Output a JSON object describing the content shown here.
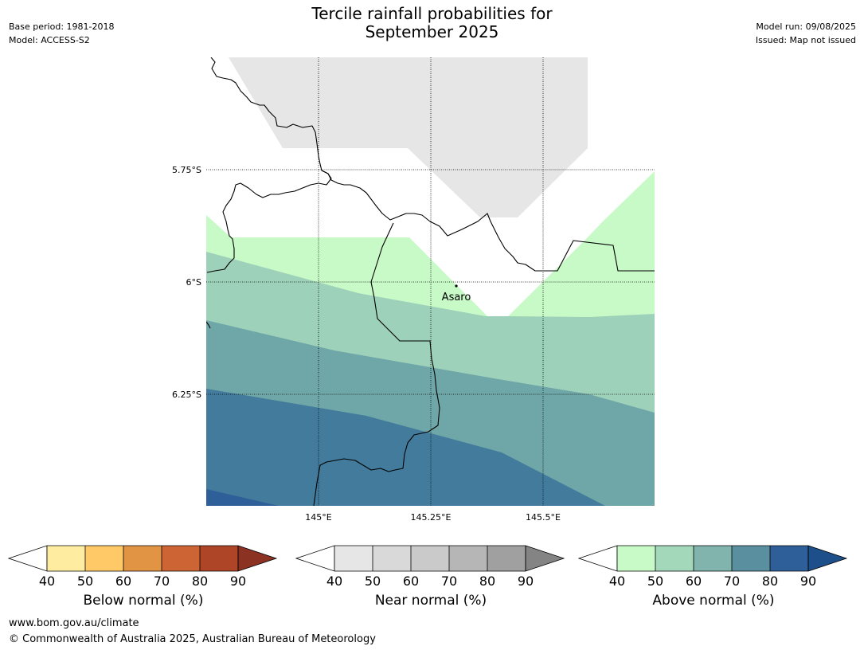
{
  "header": {
    "title_line1": "Tercile rainfall probabilities for",
    "title_line2": "September 2025",
    "base_period": "Base period: 1981-2018",
    "model": "Model: ACCESS-S2",
    "model_run": "Model run: 09/08/2025",
    "issued": "Issued: Map not issued"
  },
  "map": {
    "lat_labels": [
      "5.75°S",
      "6°S",
      "6.25°S"
    ],
    "lon_labels": [
      "145°E",
      "145.25°E",
      "145.5°E"
    ],
    "place": "Asaro",
    "colors": {
      "near_normal_40_50": "#e6e6e6",
      "above_40_50": "#c8fac8",
      "above_50_60": "#9ed1b9",
      "above_60_70": "#6fa6a8",
      "above_70_80": "#427b9b",
      "above_80_90": "#2f5f99"
    }
  },
  "legends": [
    {
      "caption": "Below normal (%)",
      "ticks": [
        "40",
        "50",
        "60",
        "70",
        "80",
        "90"
      ],
      "colors": [
        "#feeda0",
        "#fec966",
        "#e29445",
        "#cc6434",
        "#ad4526"
      ],
      "extend_color": "#8b3223"
    },
    {
      "caption": "Near normal (%)",
      "ticks": [
        "40",
        "50",
        "60",
        "70",
        "80",
        "90"
      ],
      "colors": [
        "#e6e6e6",
        "#d9d9d9",
        "#cacaca",
        "#b6b6b6",
        "#a0a0a0"
      ],
      "extend_color": "#848484"
    },
    {
      "caption": "Above normal (%)",
      "ticks": [
        "40",
        "50",
        "60",
        "70",
        "80",
        "90"
      ],
      "colors": [
        "#c8fac8",
        "#a4d8bb",
        "#80b4ad",
        "#5a8fa0",
        "#2f5f99"
      ],
      "extend_color": "#1d4f8a"
    }
  ],
  "footer": {
    "url": "www.bom.gov.au/climate",
    "copyright": "© Commonwealth of Australia 2025, Australian Bureau of Meteorology"
  }
}
